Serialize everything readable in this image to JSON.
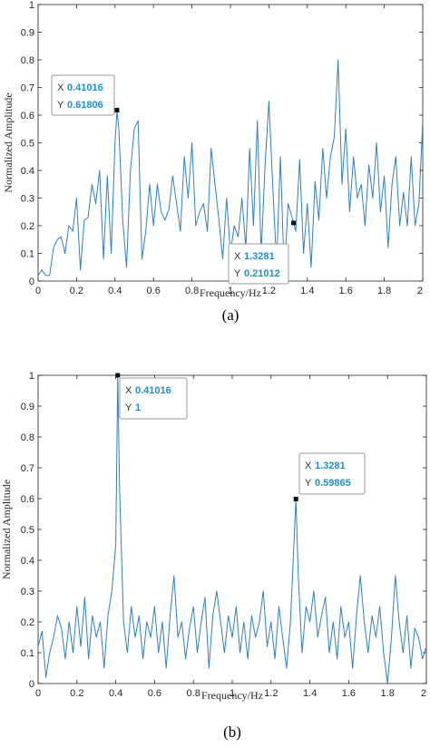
{
  "chart_data": [
    {
      "type": "line",
      "caption": "(a)",
      "xlabel": "Frequency/Hz",
      "ylabel": "Normalized Amplitude",
      "xlim": [
        0,
        2
      ],
      "ylim": [
        0,
        1
      ],
      "xticks": [
        "0",
        "0.2",
        "0.4",
        "0.6",
        "0.8",
        "1",
        "1.2",
        "1.4",
        "1.6",
        "1.8",
        "2"
      ],
      "yticks": [
        "0",
        "0.1",
        "0.2",
        "0.3",
        "0.4",
        "0.5",
        "0.6",
        "0.7",
        "0.8",
        "0.9",
        "1"
      ],
      "grid": false,
      "line_color": "#2f80c4",
      "series": [
        {
          "x": [
            0,
            0.02,
            0.04,
            0.06,
            0.08,
            0.1,
            0.12,
            0.14,
            0.16,
            0.18,
            0.2,
            0.22,
            0.24,
            0.26,
            0.28,
            0.3,
            0.32,
            0.34,
            0.36,
            0.38,
            0.4,
            0.41016,
            0.42,
            0.44,
            0.46,
            0.48,
            0.5,
            0.52,
            0.54,
            0.56,
            0.58,
            0.6,
            0.62,
            0.64,
            0.66,
            0.68,
            0.7,
            0.72,
            0.74,
            0.76,
            0.78,
            0.8,
            0.82,
            0.84,
            0.86,
            0.88,
            0.9,
            0.92,
            0.94,
            0.96,
            0.98,
            1.0,
            1.02,
            1.04,
            1.06,
            1.08,
            1.1,
            1.12,
            1.14,
            1.16,
            1.18,
            1.2,
            1.22,
            1.24,
            1.26,
            1.28,
            1.3,
            1.3281,
            1.34,
            1.36,
            1.38,
            1.4,
            1.42,
            1.44,
            1.46,
            1.48,
            1.5,
            1.52,
            1.54,
            1.56,
            1.58,
            1.6,
            1.62,
            1.64,
            1.66,
            1.68,
            1.7,
            1.72,
            1.74,
            1.76,
            1.78,
            1.8,
            1.82,
            1.84,
            1.86,
            1.88,
            1.9,
            1.92,
            1.94,
            1.96,
            1.98,
            2.0
          ],
          "y": [
            0.02,
            0.04,
            0.02,
            0.02,
            0.12,
            0.15,
            0.16,
            0.1,
            0.2,
            0.18,
            0.3,
            0.04,
            0.22,
            0.23,
            0.35,
            0.28,
            0.4,
            0.08,
            0.38,
            0.1,
            0.5,
            0.61806,
            0.55,
            0.22,
            0.05,
            0.4,
            0.55,
            0.58,
            0.08,
            0.18,
            0.35,
            0.2,
            0.35,
            0.25,
            0.22,
            0.26,
            0.38,
            0.28,
            0.18,
            0.45,
            0.3,
            0.5,
            0.2,
            0.25,
            0.28,
            0.18,
            0.48,
            0.35,
            0.22,
            0.08,
            0.3,
            0.1,
            0.2,
            0.16,
            0.3,
            0.12,
            0.48,
            0.2,
            0.58,
            0.1,
            0.42,
            0.65,
            0.35,
            0.06,
            0.45,
            0.02,
            0.28,
            0.21012,
            0.18,
            0.44,
            0.1,
            0.28,
            0.05,
            0.36,
            0.22,
            0.48,
            0.3,
            0.45,
            0.52,
            0.8,
            0.35,
            0.55,
            0.25,
            0.45,
            0.3,
            0.35,
            0.2,
            0.42,
            0.3,
            0.5,
            0.25,
            0.38,
            0.12,
            0.35,
            0.45,
            0.2,
            0.32,
            0.2,
            0.45,
            0.2,
            0.28,
            0.58
          ]
        }
      ],
      "datatips": [
        {
          "x_label": "X",
          "x_value": "0.41016",
          "y_label": "Y",
          "y_value": "0.61806",
          "x": 0.41016,
          "y": 0.61806
        },
        {
          "x_label": "X",
          "x_value": "1.3281",
          "y_label": "Y",
          "y_value": "0.21012",
          "x": 1.3281,
          "y": 0.21012
        }
      ]
    },
    {
      "type": "line",
      "caption": "(b)",
      "xlabel": "Frequency/Hz",
      "ylabel": "Normalized Amplitude",
      "xlim": [
        0,
        2
      ],
      "ylim": [
        0,
        1
      ],
      "xticks": [
        "0",
        "0.2",
        "0.4",
        "0.6",
        "0.8",
        "1",
        "1.2",
        "1.4",
        "1.6",
        "1.8",
        "2"
      ],
      "yticks": [
        "0",
        "0.1",
        "0.2",
        "0.3",
        "0.4",
        "0.5",
        "0.6",
        "0.7",
        "0.8",
        "0.9",
        "1"
      ],
      "grid": false,
      "line_color": "#2f80c4",
      "series": [
        {
          "x": [
            0,
            0.02,
            0.04,
            0.06,
            0.08,
            0.1,
            0.12,
            0.14,
            0.16,
            0.18,
            0.2,
            0.22,
            0.24,
            0.26,
            0.28,
            0.3,
            0.32,
            0.34,
            0.36,
            0.38,
            0.4,
            0.41016,
            0.42,
            0.44,
            0.46,
            0.48,
            0.5,
            0.52,
            0.54,
            0.56,
            0.58,
            0.6,
            0.62,
            0.64,
            0.66,
            0.68,
            0.7,
            0.72,
            0.74,
            0.76,
            0.78,
            0.8,
            0.82,
            0.84,
            0.86,
            0.88,
            0.9,
            0.92,
            0.94,
            0.96,
            0.98,
            1.0,
            1.02,
            1.04,
            1.06,
            1.08,
            1.1,
            1.12,
            1.14,
            1.16,
            1.18,
            1.2,
            1.22,
            1.24,
            1.26,
            1.28,
            1.3,
            1.3281,
            1.34,
            1.36,
            1.38,
            1.4,
            1.42,
            1.44,
            1.46,
            1.48,
            1.5,
            1.52,
            1.54,
            1.56,
            1.58,
            1.6,
            1.62,
            1.64,
            1.66,
            1.68,
            1.7,
            1.72,
            1.74,
            1.76,
            1.78,
            1.8,
            1.82,
            1.84,
            1.86,
            1.88,
            1.9,
            1.92,
            1.94,
            1.96,
            1.98,
            2.0
          ],
          "y": [
            0.12,
            0.17,
            0.02,
            0.1,
            0.15,
            0.22,
            0.18,
            0.08,
            0.2,
            0.1,
            0.25,
            0.12,
            0.28,
            0.08,
            0.22,
            0.15,
            0.2,
            0.05,
            0.22,
            0.3,
            0.45,
            1.0,
            0.62,
            0.2,
            0.1,
            0.25,
            0.15,
            0.22,
            0.08,
            0.2,
            0.15,
            0.25,
            0.1,
            0.2,
            0.05,
            0.22,
            0.35,
            0.15,
            0.2,
            0.08,
            0.18,
            0.25,
            0.1,
            0.2,
            0.28,
            0.05,
            0.22,
            0.3,
            0.2,
            0.1,
            0.22,
            0.15,
            0.25,
            0.1,
            0.2,
            0.08,
            0.22,
            0.15,
            0.2,
            0.3,
            0.12,
            0.2,
            0.08,
            0.25,
            0.15,
            0.05,
            0.2,
            0.59865,
            0.35,
            0.1,
            0.25,
            0.2,
            0.3,
            0.15,
            0.22,
            0.28,
            0.1,
            0.2,
            0.08,
            0.25,
            0.15,
            0.2,
            0.05,
            0.22,
            0.35,
            0.2,
            0.1,
            0.22,
            0.15,
            0.25,
            0.1,
            0.0,
            0.15,
            0.35,
            0.2,
            0.1,
            0.22,
            0.05,
            0.18,
            0.15,
            0.08,
            0.12
          ]
        }
      ],
      "datatips": [
        {
          "x_label": "X",
          "x_value": "0.41016",
          "y_label": "Y",
          "y_value": "1",
          "x": 0.41016,
          "y": 1.0
        },
        {
          "x_label": "X",
          "x_value": "1.3281",
          "y_label": "Y",
          "y_value": "0.59865",
          "x": 1.3281,
          "y": 0.59865
        }
      ]
    }
  ]
}
